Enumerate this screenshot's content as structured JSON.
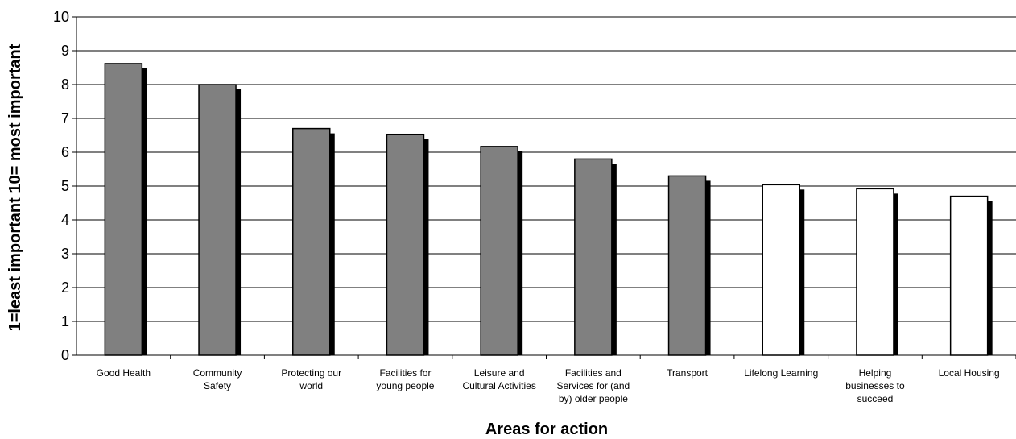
{
  "chart_data": {
    "type": "bar",
    "title": "",
    "xlabel": "Areas for action",
    "ylabel": "1=least important 10= most important",
    "ylim": [
      0,
      10
    ],
    "yticks": [
      0,
      1,
      2,
      3,
      4,
      5,
      6,
      7,
      8,
      9,
      10
    ],
    "grid": true,
    "categories": [
      "Good Health",
      "Community Safety",
      "Protecting our world",
      "Facilities for young people",
      "Leisure and Cultural Activities",
      "Facilities and Services for (and by) older people",
      "Transport",
      "Lifelong Learning",
      "Helping businesses to succeed",
      "Local Housing"
    ],
    "category_lines": [
      [
        "Good Health"
      ],
      [
        "Community",
        "Safety"
      ],
      [
        "Protecting our",
        "world"
      ],
      [
        "Facilities for",
        "young people"
      ],
      [
        "Leisure and",
        "Cultural Activities"
      ],
      [
        "Facilities and",
        "Services for (and",
        "by) older people"
      ],
      [
        "Transport"
      ],
      [
        "Lifelong Learning"
      ],
      [
        "Helping",
        "businesses to",
        "succeed"
      ],
      [
        "Local Housing"
      ]
    ],
    "values": [
      8.62,
      8.0,
      6.7,
      6.53,
      6.17,
      5.8,
      5.3,
      5.04,
      4.92,
      4.7
    ],
    "bar_colors": [
      "#808080",
      "#808080",
      "#808080",
      "#808080",
      "#808080",
      "#808080",
      "#808080",
      "#ffffff",
      "#ffffff",
      "#ffffff"
    ],
    "shadow_color": "#000000"
  }
}
